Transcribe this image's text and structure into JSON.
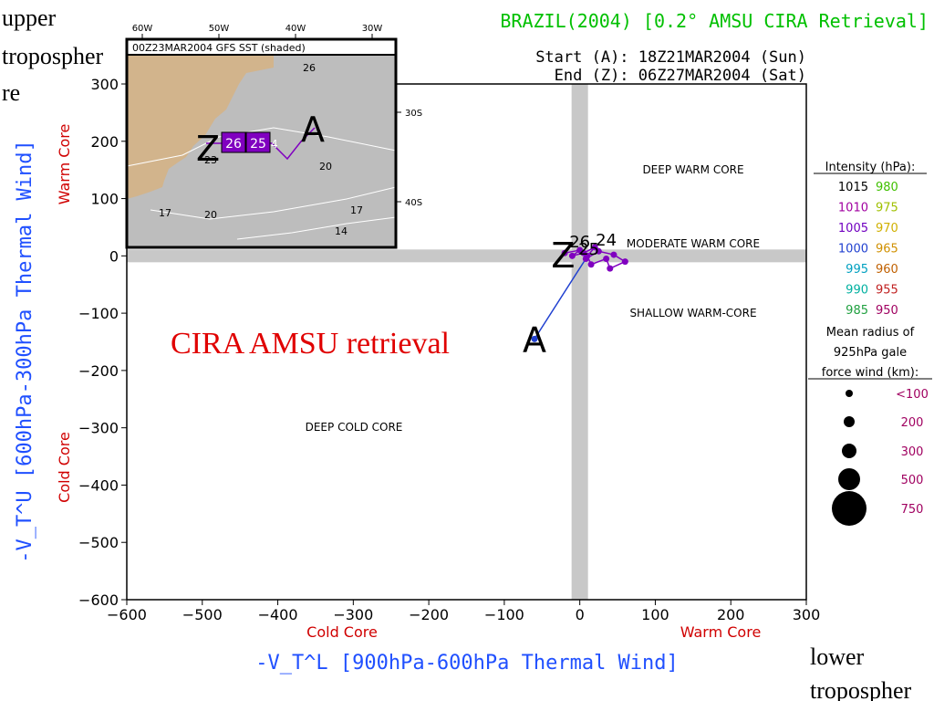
{
  "corner": {
    "upper_lines": [
      "upper",
      "tropospher",
      "re"
    ],
    "lower_lines": [
      "lower",
      "tropospher"
    ]
  },
  "header": {
    "title": "BRAZIL(2004) [0.2° AMSU CIRA Retrieval]",
    "start": "Start (A): 18Z21MAR2004 (Sun)",
    "end": "End (Z): 06Z27MAR2004 (Sat)"
  },
  "colors": {
    "title": "#00c000",
    "axis_title": "#2050ff",
    "core_label": "#d00000",
    "retrieval_label": "#e00000",
    "track_line": "#2040d0",
    "track_points": "#8000c0",
    "land": "#d2b48c",
    "sea": "#b4b4b4",
    "crosshair": "#c8c8c8"
  },
  "inset": {
    "title": "00Z23MAR2004 GFS SST (shaded)",
    "lon_labels": [
      "60W",
      "50W",
      "40W",
      "30W"
    ],
    "lat_labels": [
      "30S",
      "40S"
    ],
    "contour_labels": [
      "26",
      "23",
      "20",
      "17",
      "20",
      "17",
      "14"
    ],
    "track_boxes": [
      "26",
      "25"
    ],
    "track_tail": "4",
    "start_marker": "A",
    "end_marker": "Z"
  },
  "regions": {
    "deep_warm": "DEEP WARM CORE",
    "moderate_warm": "MODERATE WARM CORE",
    "shallow_warm": "SHALLOW WARM-CORE",
    "deep_cold": "DEEP COLD CORE"
  },
  "retrieval_label": "CIRA AMSU retrieval",
  "legend": {
    "intensity_title": "Intensity (hPa):",
    "intensity": [
      {
        "label": "1015",
        "color": "#000000"
      },
      {
        "label": "1010",
        "color": "#a000a0"
      },
      {
        "label": "1005",
        "color": "#7000c0"
      },
      {
        "label": "1000",
        "color": "#2040d0"
      },
      {
        "label": "995",
        "color": "#00a0c0"
      },
      {
        "label": "990",
        "color": "#00b0a0"
      },
      {
        "label": "985",
        "color": "#20a040"
      },
      {
        "label": "980",
        "color": "#40c000"
      },
      {
        "label": "975",
        "color": "#a0c000"
      },
      {
        "label": "970",
        "color": "#d0b000"
      },
      {
        "label": "965",
        "color": "#d09000"
      },
      {
        "label": "960",
        "color": "#c06000"
      },
      {
        "label": "955",
        "color": "#c02020"
      },
      {
        "label": "950",
        "color": "#a00060"
      }
    ],
    "radius_title_lines": [
      "Mean radius of",
      "925hPa gale",
      "force wind (km):"
    ],
    "radius": [
      {
        "label": "<100",
        "size": 1
      },
      {
        "label": "200",
        "size": 2
      },
      {
        "label": "300",
        "size": 3
      },
      {
        "label": "500",
        "size": 4
      },
      {
        "label": "750",
        "size": 5
      }
    ]
  },
  "chart_data": {
    "type": "scatter",
    "xlabel": "-V_T^L [900hPa-600hPa Thermal Wind]",
    "ylabel": "-V_T^U [600hPa-300hPa Thermal Wind]",
    "x_sub_labels": {
      "left": "Cold Core",
      "right": "Warm Core"
    },
    "y_sub_labels": {
      "top": "Warm Core",
      "bottom": "Cold Core"
    },
    "xlim": [
      -600,
      300
    ],
    "ylim": [
      -600,
      300
    ],
    "xticks": [
      -600,
      -500,
      -400,
      -300,
      -200,
      -100,
      0,
      100,
      200,
      300
    ],
    "yticks": [
      -600,
      -500,
      -400,
      -300,
      -200,
      -100,
      0,
      100,
      200,
      300
    ],
    "xtick_labels": [
      "−600",
      "−500",
      "−400",
      "−300",
      "−200",
      "−100",
      "0",
      "100",
      "200",
      "300"
    ],
    "ytick_labels": [
      "−600",
      "−500",
      "−400",
      "−300",
      "−200",
      "−100",
      "0",
      "100",
      "200",
      "300"
    ],
    "track": [
      {
        "x": -60,
        "y": -145
      },
      {
        "x": 8,
        "y": -5
      },
      {
        "x": 25,
        "y": 8
      },
      {
        "x": 45,
        "y": 2
      },
      {
        "x": 60,
        "y": -10
      },
      {
        "x": 40,
        "y": -22
      },
      {
        "x": 35,
        "y": -5
      },
      {
        "x": 15,
        "y": -15
      },
      {
        "x": 10,
        "y": 0
      },
      {
        "x": 20,
        "y": 15
      },
      {
        "x": 5,
        "y": 5
      },
      {
        "x": -10,
        "y": 0
      },
      {
        "x": 0,
        "y": 10
      },
      {
        "x": -20,
        "y": 5
      }
    ],
    "track_labels": [
      {
        "text": "A",
        "x": -60,
        "y": -145
      },
      {
        "text": "24",
        "x": 35,
        "y": 18
      },
      {
        "text": "25",
        "x": 12,
        "y": 2
      },
      {
        "text": "26",
        "x": 0,
        "y": 15
      },
      {
        "text": "Z",
        "x": -22,
        "y": 2
      }
    ]
  }
}
